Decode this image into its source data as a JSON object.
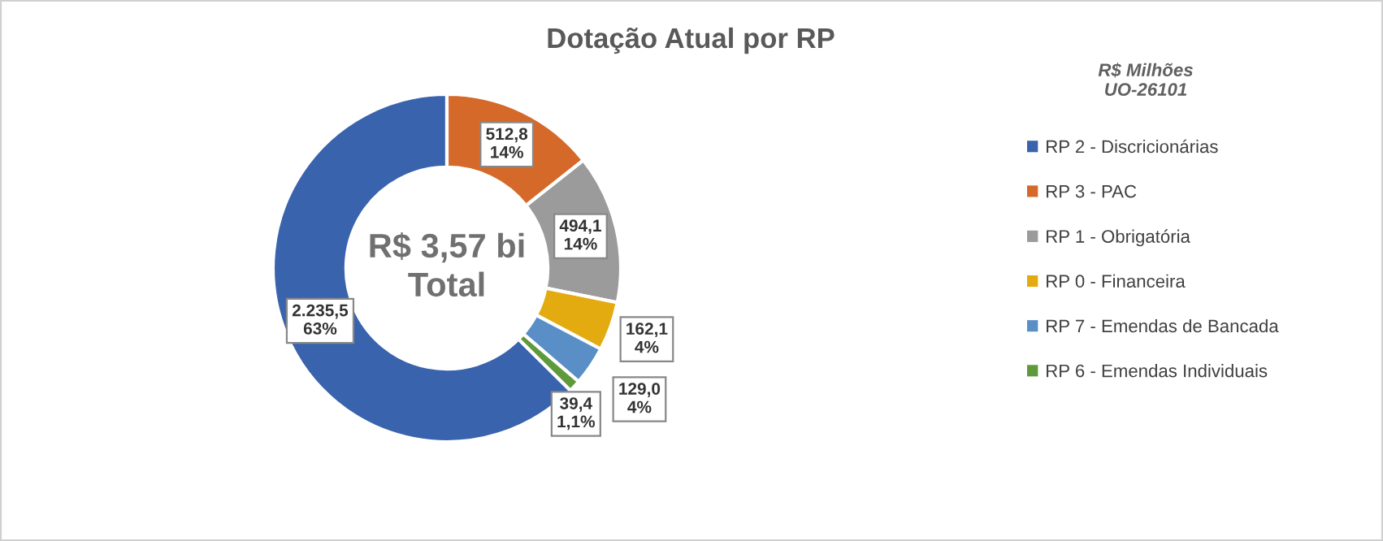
{
  "chart_data": {
    "type": "donut",
    "title": "Dotação Atual por RP",
    "categories": [
      "RP 2 - Discricionárias",
      "RP 3 - PAC",
      "RP 1 - Obrigatória",
      "RP 0 - Financeira",
      "RP 7 - Emendas de Bancada",
      "RP 6 - Emendas Individuais"
    ],
    "values": [
      2235.5,
      512.8,
      494.1,
      162.1,
      129.0,
      39.4
    ],
    "colors": [
      "#3a63ad",
      "#d4692a",
      "#9b9b9b",
      "#e3ab10",
      "#5a8ec6",
      "#5e9a3b"
    ],
    "value_labels": [
      "2.235,5\n63%",
      "512,8\n14%",
      "494,1\n14%",
      "162,1\n4%",
      "129,0\n4%",
      "39,4\n1,1%"
    ],
    "annotations": [
      "R$ 3,57 bi\nTotal",
      "R$ Milhões\nUO-26101"
    ],
    "legend": "right"
  }
}
